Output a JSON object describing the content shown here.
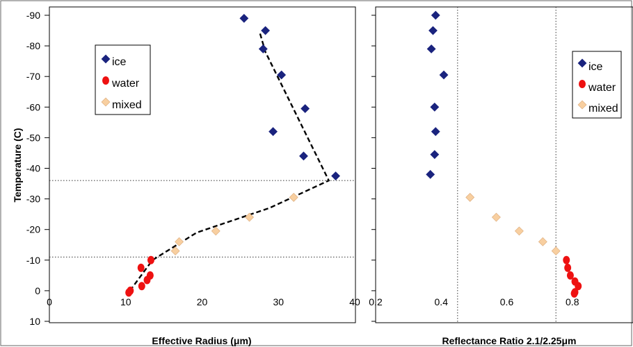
{
  "chart_data": [
    {
      "type": "scatter",
      "xlabel": "Effective Radius (μm)",
      "ylabel": "Temperature (C)",
      "xlim": [
        0,
        40
      ],
      "ylim": [
        10,
        -90
      ],
      "xticks": [
        "0",
        "10",
        "20",
        "30",
        "40"
      ],
      "yticks": [
        "-90",
        "-80",
        "-70",
        "-60",
        "-50",
        "-40",
        "-30",
        "-20",
        "-10",
        "0",
        "10"
      ],
      "legend": {
        "placement": "upper-left",
        "entries": [
          "ice",
          "water",
          "mixed"
        ]
      },
      "series": [
        {
          "name": "ice",
          "color": "#1a237e",
          "marker": "diamond",
          "points": [
            [
              25.5,
              -89
            ],
            [
              28.3,
              -85
            ],
            [
              28.0,
              -79
            ],
            [
              30.4,
              -70.5
            ],
            [
              33.5,
              -59.5
            ],
            [
              29.3,
              -52
            ],
            [
              33.3,
              -44
            ],
            [
              37.5,
              -37.5
            ]
          ]
        },
        {
          "name": "water",
          "color": "#ee1111",
          "marker": "circle",
          "points": [
            [
              13.3,
              -10
            ],
            [
              12.0,
              -7.5
            ],
            [
              13.2,
              -5
            ],
            [
              12.8,
              -3.5
            ],
            [
              12.1,
              -1.5
            ],
            [
              10.6,
              0
            ],
            [
              10.4,
              0.6
            ]
          ]
        },
        {
          "name": "mixed",
          "color": "#f8cfa0",
          "marker": "diamond",
          "points": [
            [
              16.5,
              -13
            ],
            [
              17.0,
              -16
            ],
            [
              21.8,
              -19.5
            ],
            [
              26.2,
              -24
            ],
            [
              32.0,
              -30.5
            ]
          ]
        }
      ],
      "fit_line": [
        [
          27.6,
          -84
        ],
        [
          28.3,
          -78
        ],
        [
          36.6,
          -36
        ],
        [
          28.8,
          -27
        ],
        [
          19.3,
          -19
        ],
        [
          13.5,
          -10
        ],
        [
          10.7,
          -0.5
        ]
      ],
      "ref_lines_y": [
        -36,
        -11
      ]
    },
    {
      "type": "scatter",
      "xlabel": "Reflectance Ratio 2.1/2.25μm",
      "ylabel": "",
      "xlim": [
        0.2,
        1.0
      ],
      "ylim": [
        10,
        -90
      ],
      "xticks": [
        "0.2",
        "0.4",
        "0.6",
        "0.8"
      ],
      "legend": {
        "placement": "upper-right",
        "entries": [
          "ice",
          "water",
          "mixed"
        ]
      },
      "series": [
        {
          "name": "ice",
          "color": "#1a237e",
          "marker": "diamond",
          "points": [
            [
              0.383,
              -90
            ],
            [
              0.375,
              -85
            ],
            [
              0.37,
              -79
            ],
            [
              0.408,
              -70.5
            ],
            [
              0.38,
              -60
            ],
            [
              0.383,
              -52
            ],
            [
              0.38,
              -44.5
            ],
            [
              0.367,
              -38
            ]
          ]
        },
        {
          "name": "water",
          "color": "#ee1111",
          "marker": "circle",
          "points": [
            [
              0.782,
              -10
            ],
            [
              0.786,
              -7.5
            ],
            [
              0.794,
              -5
            ],
            [
              0.808,
              -3
            ],
            [
              0.818,
              -1.5
            ],
            [
              0.808,
              0.5
            ],
            [
              0.806,
              0.9
            ]
          ]
        },
        {
          "name": "mixed",
          "color": "#f8cfa0",
          "marker": "diamond",
          "points": [
            [
              0.488,
              -30.5
            ],
            [
              0.568,
              -24
            ],
            [
              0.638,
              -19.5
            ],
            [
              0.71,
              -16
            ],
            [
              0.75,
              -13
            ]
          ]
        }
      ],
      "ref_lines_x": [
        0.45,
        0.75
      ]
    }
  ]
}
